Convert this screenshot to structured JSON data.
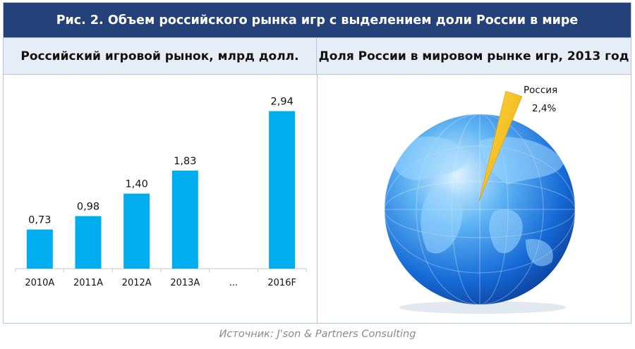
{
  "figure_title": "Рис. 2. Объем российского рынка игр с выделением доли России в мире",
  "source": "Источник: J'son & Partners Consulting",
  "chart_data": [
    {
      "type": "bar",
      "title": "Российский игровой рынок, млрд долл.",
      "categories": [
        "2010A",
        "2011A",
        "2012A",
        "2013A",
        "...",
        "2016F"
      ],
      "values": [
        0.73,
        0.98,
        1.4,
        1.83,
        null,
        2.94
      ],
      "value_labels": [
        "0,73",
        "0,98",
        "1,40",
        "1,83",
        "",
        "2,94"
      ],
      "ylim": [
        0,
        3
      ],
      "grid": false,
      "bar_color": "#00aeef"
    },
    {
      "type": "pie",
      "title": "Доля России в мировом рынке игр, 2013 год",
      "slices": [
        {
          "name": "Россия",
          "value": 2.4,
          "label": "2,4%",
          "color": "#f7c417"
        }
      ],
      "globe_color": "#1e7fe0"
    }
  ]
}
